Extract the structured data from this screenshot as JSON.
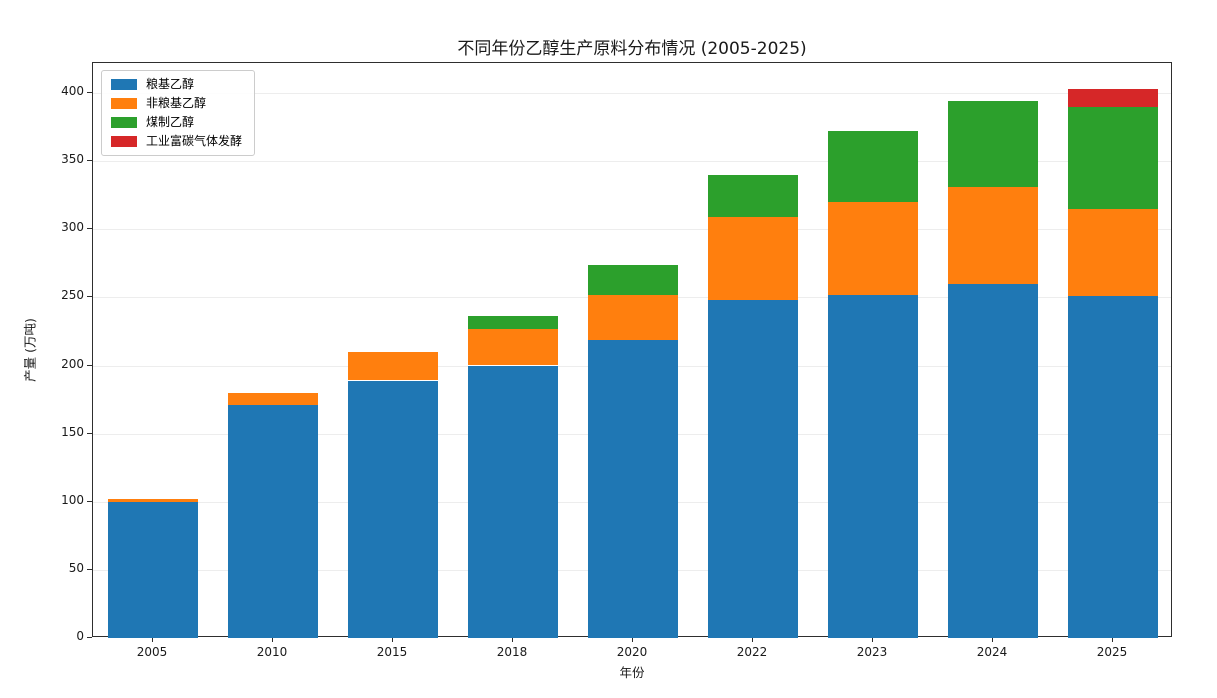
{
  "page": {
    "background": "#ffffff"
  },
  "chart_data": {
    "type": "bar",
    "stacked": true,
    "title": "不同年份乙醇生产原料分布情况 (2005-2025)",
    "xlabel": "年份",
    "ylabel": "产量 (万吨)",
    "categories": [
      "2005",
      "2010",
      "2015",
      "2018",
      "2020",
      "2022",
      "2023",
      "2024",
      "2025"
    ],
    "series": [
      {
        "name": "粮基乙醇",
        "color": "#1f77b4",
        "values": [
          100,
          171,
          189,
          200,
          219,
          248,
          252,
          260,
          251
        ]
      },
      {
        "name": "非粮基乙醇",
        "color": "#ff7f0e",
        "values": [
          2,
          9,
          21,
          27,
          33,
          61,
          68,
          71,
          64
        ]
      },
      {
        "name": "煤制乙醇",
        "color": "#2ca02c",
        "values": [
          0,
          0,
          0,
          9,
          22,
          31,
          52,
          63,
          75
        ]
      },
      {
        "name": "工业富碳气体发酵",
        "color": "#d62728",
        "values": [
          0,
          0,
          0,
          0,
          0,
          0,
          0,
          0,
          13
        ]
      }
    ],
    "totals": [
      102,
      180,
      210,
      236,
      274,
      340,
      372,
      394,
      403
    ],
    "yticks": [
      0,
      50,
      100,
      150,
      200,
      250,
      300,
      350,
      400
    ],
    "ylim": [
      0,
      422
    ],
    "grid": "horizontal",
    "legend_position": "upper-left",
    "spine_color": "#2e2e2e",
    "grid_color": "#ededed"
  }
}
